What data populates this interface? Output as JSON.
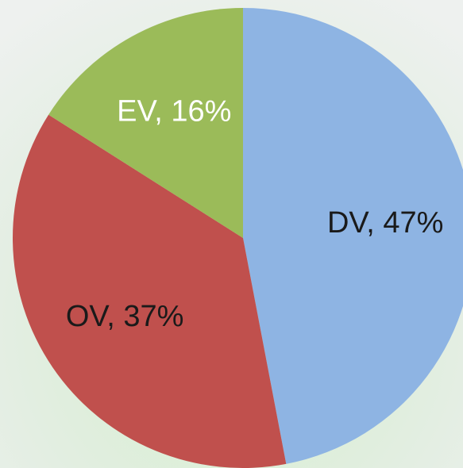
{
  "chart_data": {
    "type": "pie",
    "values": [
      47,
      37,
      16
    ],
    "value_labels": [
      "DV, 47%",
      "OV, 37%",
      "EV, 16%"
    ],
    "colors": [
      "#8eb4e3",
      "#c0504d",
      "#9bbb59"
    ],
    "label_colors": [
      "#1a1a1a",
      "#1a1a1a",
      "#ffffff"
    ],
    "start_angle": 0,
    "direction": "clockwise"
  }
}
